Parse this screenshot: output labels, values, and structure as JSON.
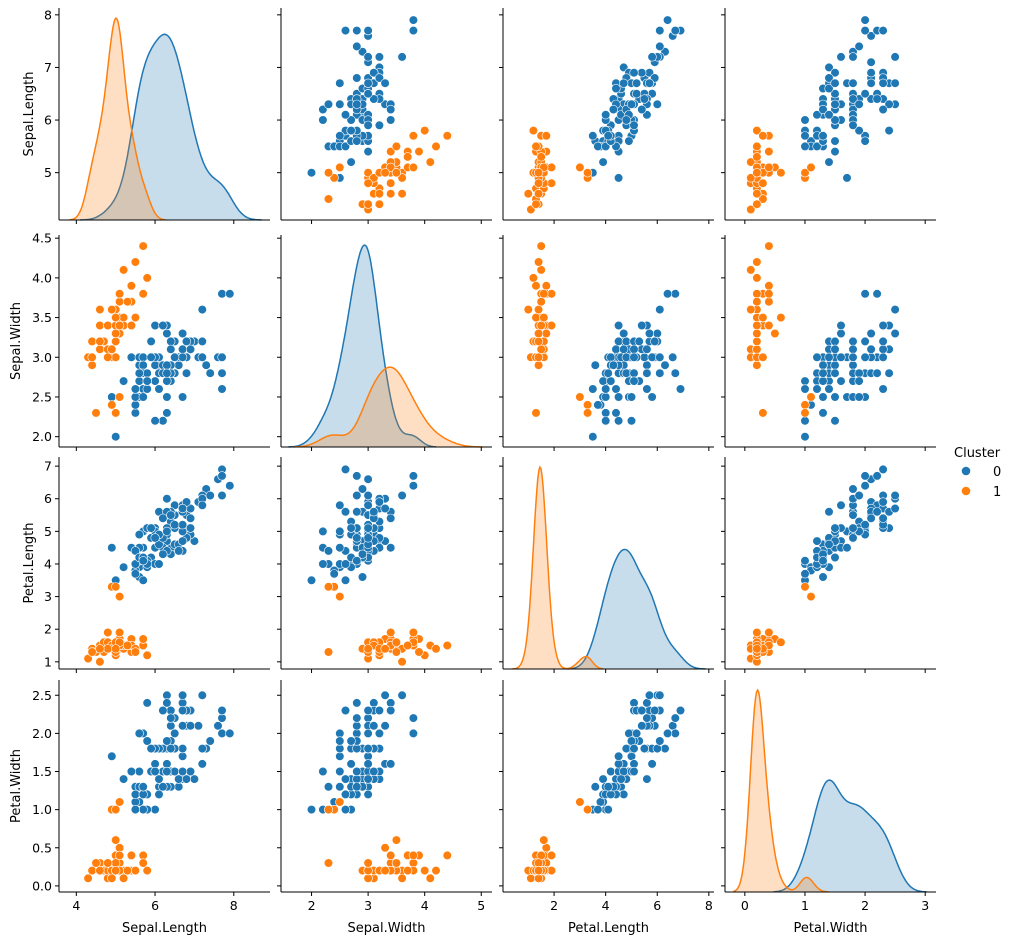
{
  "chart_data": {
    "type": "scatter",
    "kind": "pairplot",
    "title": "",
    "variables": [
      "Sepal.Length",
      "Sepal.Width",
      "Petal.Length",
      "Petal.Width"
    ],
    "hue": "Cluster",
    "diagonal": "kde",
    "grid": false,
    "legend": {
      "title": "Cluster",
      "placement": "right",
      "entries": [
        {
          "label": "0",
          "color": "#1f77b4"
        },
        {
          "label": "1",
          "color": "#ff7f0e"
        }
      ]
    },
    "axes": {
      "Sepal.Length": {
        "range": [
          3.56,
          8.92
        ],
        "ticks": [
          4,
          6,
          8
        ],
        "tick_labels": [
          "4",
          "6",
          "8"
        ],
        "row_range": [
          4.1,
          8.13
        ],
        "row_ticks": [
          5,
          6,
          7,
          8
        ],
        "row_tick_labels": [
          "5",
          "6",
          "7",
          "8"
        ]
      },
      "Sepal.Width": {
        "range": [
          1.46,
          5.19
        ],
        "ticks": [
          2,
          3,
          4,
          5
        ],
        "tick_labels": [
          "2",
          "3",
          "4",
          "5"
        ],
        "row_range": [
          1.87,
          4.54
        ],
        "row_ticks": [
          2.0,
          2.5,
          3.0,
          3.5,
          4.0,
          4.5
        ],
        "row_tick_labels": [
          "2.0",
          "2.5",
          "3.0",
          "3.5",
          "4.0",
          "4.5"
        ]
      },
      "Petal.Length": {
        "range": [
          0.02,
          8.2
        ],
        "ticks": [
          2,
          4,
          6,
          8
        ],
        "tick_labels": [
          "2",
          "4",
          "6",
          "8"
        ],
        "row_range": [
          0.78,
          7.28
        ],
        "row_ticks": [
          1,
          2,
          3,
          4,
          5,
          6,
          7
        ],
        "row_tick_labels": [
          "1",
          "2",
          "3",
          "4",
          "5",
          "6",
          "7"
        ]
      },
      "Petal.Width": {
        "range": [
          -0.33,
          3.18
        ],
        "ticks": [
          0,
          1,
          2,
          3
        ],
        "tick_labels": [
          "0",
          "1",
          "2",
          "3"
        ],
        "row_range": [
          -0.08,
          2.7
        ],
        "row_ticks": [
          0.0,
          0.5,
          1.0,
          1.5,
          2.0,
          2.5
        ],
        "row_tick_labels": [
          "0.0",
          "0.5",
          "1.0",
          "1.5",
          "2.0",
          "2.5"
        ]
      }
    },
    "series": [
      {
        "name": "0",
        "color": "#1f77b4",
        "points": [
          [
            7.0,
            3.2,
            4.7,
            1.4
          ],
          [
            6.4,
            3.2,
            4.5,
            1.5
          ],
          [
            6.9,
            3.1,
            4.9,
            1.5
          ],
          [
            5.5,
            2.3,
            4.0,
            1.3
          ],
          [
            6.5,
            2.8,
            4.6,
            1.5
          ],
          [
            5.7,
            2.8,
            4.5,
            1.3
          ],
          [
            6.3,
            3.3,
            4.7,
            1.6
          ],
          [
            6.6,
            2.9,
            4.6,
            1.3
          ],
          [
            5.2,
            2.7,
            3.9,
            1.4
          ],
          [
            5.0,
            2.0,
            3.5,
            1.0
          ],
          [
            5.9,
            3.0,
            4.2,
            1.5
          ],
          [
            6.0,
            2.2,
            4.0,
            1.0
          ],
          [
            6.1,
            2.9,
            4.7,
            1.4
          ],
          [
            5.6,
            2.9,
            3.6,
            1.3
          ],
          [
            6.7,
            3.1,
            4.4,
            1.4
          ],
          [
            5.6,
            3.0,
            4.5,
            1.5
          ],
          [
            5.8,
            2.7,
            4.1,
            1.0
          ],
          [
            6.2,
            2.2,
            4.5,
            1.5
          ],
          [
            5.6,
            2.5,
            3.9,
            1.1
          ],
          [
            5.9,
            3.2,
            4.8,
            1.8
          ],
          [
            6.1,
            2.8,
            4.0,
            1.3
          ],
          [
            6.3,
            2.5,
            4.9,
            1.5
          ],
          [
            6.1,
            2.8,
            4.7,
            1.2
          ],
          [
            6.4,
            2.9,
            4.3,
            1.3
          ],
          [
            6.6,
            3.0,
            4.4,
            1.4
          ],
          [
            6.8,
            2.8,
            4.8,
            1.4
          ],
          [
            6.7,
            3.0,
            5.0,
            1.7
          ],
          [
            6.0,
            2.9,
            4.5,
            1.5
          ],
          [
            5.7,
            2.6,
            3.5,
            1.0
          ],
          [
            5.5,
            2.4,
            3.8,
            1.1
          ],
          [
            5.5,
            2.4,
            3.7,
            1.0
          ],
          [
            5.8,
            2.7,
            3.9,
            1.2
          ],
          [
            6.0,
            2.7,
            5.1,
            1.6
          ],
          [
            5.4,
            3.0,
            4.5,
            1.5
          ],
          [
            6.0,
            3.4,
            4.5,
            1.6
          ],
          [
            6.7,
            3.1,
            4.7,
            1.5
          ],
          [
            6.3,
            2.3,
            4.4,
            1.3
          ],
          [
            5.6,
            3.0,
            4.1,
            1.3
          ],
          [
            5.5,
            2.5,
            4.0,
            1.3
          ],
          [
            5.5,
            2.6,
            4.4,
            1.2
          ],
          [
            6.1,
            3.0,
            4.6,
            1.4
          ],
          [
            5.8,
            2.6,
            4.0,
            1.2
          ],
          [
            5.6,
            2.7,
            4.2,
            1.3
          ],
          [
            5.7,
            3.0,
            4.2,
            1.2
          ],
          [
            5.7,
            2.9,
            4.2,
            1.3
          ],
          [
            6.2,
            2.9,
            4.3,
            1.3
          ],
          [
            5.7,
            2.8,
            4.1,
            1.3
          ],
          [
            6.3,
            3.3,
            6.0,
            2.5
          ],
          [
            5.8,
            2.7,
            5.1,
            1.9
          ],
          [
            7.1,
            3.0,
            5.9,
            2.1
          ],
          [
            6.3,
            2.9,
            5.6,
            1.8
          ],
          [
            6.5,
            3.0,
            5.8,
            2.2
          ],
          [
            7.6,
            3.0,
            6.6,
            2.1
          ],
          [
            4.9,
            2.5,
            4.5,
            1.7
          ],
          [
            7.3,
            2.9,
            6.3,
            1.8
          ],
          [
            6.7,
            2.5,
            5.8,
            1.8
          ],
          [
            7.2,
            3.6,
            6.1,
            2.5
          ],
          [
            6.5,
            3.2,
            5.1,
            2.0
          ],
          [
            6.4,
            2.7,
            5.3,
            1.9
          ],
          [
            6.8,
            3.0,
            5.5,
            2.1
          ],
          [
            5.7,
            2.5,
            5.0,
            2.0
          ],
          [
            5.8,
            2.8,
            5.1,
            2.4
          ],
          [
            6.4,
            3.2,
            5.3,
            2.3
          ],
          [
            6.5,
            3.0,
            5.5,
            1.8
          ],
          [
            7.7,
            3.8,
            6.7,
            2.2
          ],
          [
            7.7,
            2.6,
            6.9,
            2.3
          ],
          [
            6.0,
            2.2,
            5.0,
            1.5
          ],
          [
            6.9,
            3.2,
            5.7,
            2.3
          ],
          [
            5.6,
            2.8,
            4.9,
            2.0
          ],
          [
            7.7,
            2.8,
            6.7,
            2.0
          ],
          [
            6.3,
            2.7,
            4.9,
            1.8
          ],
          [
            6.7,
            3.3,
            5.7,
            2.1
          ],
          [
            7.2,
            3.2,
            6.0,
            1.8
          ],
          [
            6.2,
            2.8,
            4.8,
            1.8
          ],
          [
            6.1,
            3.0,
            4.9,
            1.8
          ],
          [
            6.4,
            2.8,
            5.6,
            2.1
          ],
          [
            7.2,
            3.0,
            5.8,
            1.6
          ],
          [
            7.4,
            2.8,
            6.1,
            1.9
          ],
          [
            7.9,
            3.8,
            6.4,
            2.0
          ],
          [
            6.4,
            2.8,
            5.6,
            2.2
          ],
          [
            6.3,
            2.8,
            5.1,
            1.5
          ],
          [
            6.1,
            2.6,
            5.6,
            1.4
          ],
          [
            7.7,
            3.0,
            6.1,
            2.3
          ],
          [
            6.3,
            3.4,
            5.6,
            2.4
          ],
          [
            6.4,
            3.1,
            5.5,
            1.8
          ],
          [
            6.0,
            3.0,
            4.8,
            1.8
          ],
          [
            6.9,
            3.1,
            5.4,
            2.1
          ],
          [
            6.7,
            3.1,
            5.6,
            2.4
          ],
          [
            6.9,
            3.1,
            5.1,
            2.3
          ],
          [
            5.8,
            2.7,
            5.1,
            1.9
          ],
          [
            6.8,
            3.2,
            5.9,
            2.3
          ],
          [
            6.7,
            3.3,
            5.7,
            2.5
          ],
          [
            6.7,
            3.0,
            5.2,
            2.3
          ],
          [
            6.3,
            2.5,
            5.0,
            1.9
          ],
          [
            6.5,
            3.0,
            5.2,
            2.0
          ],
          [
            6.2,
            3.4,
            5.4,
            2.3
          ],
          [
            5.9,
            3.0,
            5.1,
            1.8
          ]
        ]
      },
      {
        "name": "1",
        "color": "#ff7f0e",
        "points": [
          [
            5.1,
            3.5,
            1.4,
            0.2
          ],
          [
            4.9,
            3.0,
            1.4,
            0.2
          ],
          [
            4.7,
            3.2,
            1.3,
            0.2
          ],
          [
            4.6,
            3.1,
            1.5,
            0.2
          ],
          [
            5.0,
            3.6,
            1.4,
            0.2
          ],
          [
            5.4,
            3.9,
            1.7,
            0.4
          ],
          [
            4.6,
            3.4,
            1.4,
            0.3
          ],
          [
            5.0,
            3.4,
            1.5,
            0.2
          ],
          [
            4.4,
            2.9,
            1.4,
            0.2
          ],
          [
            4.9,
            3.1,
            1.5,
            0.1
          ],
          [
            5.4,
            3.7,
            1.5,
            0.2
          ],
          [
            4.8,
            3.4,
            1.6,
            0.2
          ],
          [
            4.8,
            3.0,
            1.4,
            0.1
          ],
          [
            4.3,
            3.0,
            1.1,
            0.1
          ],
          [
            5.8,
            4.0,
            1.2,
            0.2
          ],
          [
            5.7,
            4.4,
            1.5,
            0.4
          ],
          [
            5.4,
            3.9,
            1.3,
            0.4
          ],
          [
            5.1,
            3.5,
            1.4,
            0.3
          ],
          [
            5.7,
            3.8,
            1.7,
            0.3
          ],
          [
            5.1,
            3.8,
            1.5,
            0.3
          ],
          [
            5.4,
            3.4,
            1.7,
            0.2
          ],
          [
            5.1,
            3.7,
            1.5,
            0.4
          ],
          [
            4.6,
            3.6,
            1.0,
            0.2
          ],
          [
            5.1,
            3.3,
            1.7,
            0.5
          ],
          [
            4.8,
            3.4,
            1.9,
            0.2
          ],
          [
            5.0,
            3.0,
            1.6,
            0.2
          ],
          [
            5.0,
            3.4,
            1.6,
            0.4
          ],
          [
            5.2,
            3.5,
            1.5,
            0.2
          ],
          [
            5.2,
            3.4,
            1.4,
            0.2
          ],
          [
            4.7,
            3.2,
            1.6,
            0.2
          ],
          [
            4.8,
            3.1,
            1.6,
            0.2
          ],
          [
            5.4,
            3.4,
            1.5,
            0.4
          ],
          [
            5.2,
            4.1,
            1.5,
            0.1
          ],
          [
            5.5,
            4.2,
            1.4,
            0.2
          ],
          [
            4.9,
            3.1,
            1.5,
            0.2
          ],
          [
            5.0,
            3.2,
            1.2,
            0.2
          ],
          [
            5.5,
            3.5,
            1.3,
            0.2
          ],
          [
            4.9,
            3.6,
            1.4,
            0.1
          ],
          [
            4.4,
            3.0,
            1.3,
            0.2
          ],
          [
            5.1,
            3.4,
            1.5,
            0.2
          ],
          [
            5.0,
            3.5,
            1.3,
            0.3
          ],
          [
            4.5,
            2.3,
            1.3,
            0.3
          ],
          [
            4.4,
            3.2,
            1.3,
            0.2
          ],
          [
            5.0,
            3.5,
            1.6,
            0.6
          ],
          [
            5.1,
            3.8,
            1.9,
            0.4
          ],
          [
            4.8,
            3.0,
            1.4,
            0.3
          ],
          [
            5.1,
            3.8,
            1.6,
            0.2
          ],
          [
            4.6,
            3.2,
            1.4,
            0.2
          ],
          [
            5.3,
            3.7,
            1.5,
            0.2
          ],
          [
            5.0,
            3.3,
            1.4,
            0.2
          ],
          [
            4.9,
            2.4,
            3.3,
            1.0
          ],
          [
            5.0,
            2.3,
            3.3,
            1.0
          ],
          [
            5.1,
            2.5,
            3.0,
            1.1
          ]
        ]
      }
    ]
  }
}
